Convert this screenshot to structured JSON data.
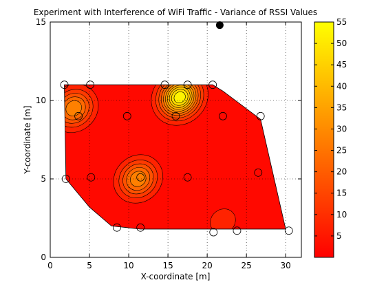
{
  "chart_data": {
    "type": "contour",
    "title": "Experiment with Interference of WiFi Traffic - Variance of RSSI Values",
    "xlabel": "X-coordinate [m]",
    "ylabel": "Y-coordinate [m]",
    "xlim": [
      0,
      32
    ],
    "ylim": [
      0,
      15
    ],
    "xticks": [
      0,
      5,
      10,
      15,
      20,
      25,
      30
    ],
    "yticks": [
      0,
      5,
      10,
      15
    ],
    "grid": "dotted",
    "colormap": "autumn",
    "colormap_colors": [
      "#ff0000",
      "#ffff00"
    ],
    "colorbar": {
      "range": [
        0,
        55
      ],
      "ticks": [
        5,
        10,
        15,
        20,
        25,
        30,
        35,
        40,
        45,
        50,
        55
      ],
      "placement": "right"
    },
    "coverage_polygon": [
      [
        1.8,
        10.8
      ],
      [
        2.0,
        5.0
      ],
      [
        5.0,
        3.2
      ],
      [
        7.8,
        2.0
      ],
      [
        11.5,
        1.8
      ],
      [
        19.5,
        1.8
      ],
      [
        30.0,
        1.8
      ],
      [
        30.0,
        1.8
      ],
      [
        26.8,
        8.8
      ],
      [
        22.0,
        10.6
      ],
      [
        20.7,
        11.0
      ],
      [
        14.0,
        11.0
      ],
      [
        11.0,
        11.0
      ],
      [
        5.0,
        11.0
      ],
      [
        1.8,
        11.0
      ]
    ],
    "measurement_points": [
      [
        1.8,
        11.0
      ],
      [
        5.1,
        11.0
      ],
      [
        14.6,
        11.0
      ],
      [
        17.5,
        11.0
      ],
      [
        20.7,
        11.0
      ],
      [
        3.6,
        9.0
      ],
      [
        9.8,
        9.0
      ],
      [
        16.0,
        9.0
      ],
      [
        22.0,
        9.0
      ],
      [
        26.8,
        9.0
      ],
      [
        2.0,
        5.0
      ],
      [
        5.2,
        5.1
      ],
      [
        11.5,
        5.1
      ],
      [
        17.5,
        5.1
      ],
      [
        26.5,
        5.4
      ],
      [
        8.5,
        1.9
      ],
      [
        11.5,
        1.9
      ],
      [
        20.8,
        1.6
      ],
      [
        23.8,
        1.7
      ],
      [
        30.4,
        1.7
      ]
    ],
    "access_point": [
      21.6,
      14.8
    ],
    "contour_levels": [
      5,
      10,
      15,
      20,
      25,
      30,
      35,
      40,
      45,
      50
    ],
    "hotspots": [
      {
        "center": [
          16.5,
          10.2
        ],
        "peak": 55
      },
      {
        "center": [
          11.2,
          5.0
        ],
        "peak": 30
      },
      {
        "center": [
          3.0,
          9.5
        ],
        "peak": 30
      },
      {
        "center": [
          22.0,
          2.3
        ],
        "peak": 8
      }
    ]
  }
}
